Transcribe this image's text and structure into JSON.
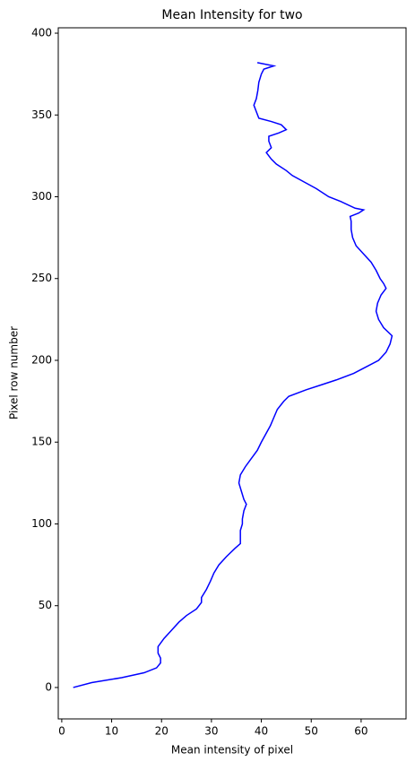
{
  "chart_data": {
    "type": "line",
    "title": "Mean Intensity for two",
    "x_label": "Mean intensity of pixel",
    "y_label": "Pixel row number",
    "color": "#0000ff",
    "x": [
      2.3,
      6,
      12,
      16.5,
      19,
      19.8,
      19.8,
      19.3,
      19.3,
      20.5,
      22,
      23.5,
      25,
      27,
      28,
      28,
      29,
      29.8,
      30.5,
      31.5,
      33,
      34.7,
      35.8,
      35.8,
      35.8,
      36.2,
      36.2,
      36.5,
      37,
      36.5,
      36,
      35.5,
      35.8,
      36.8,
      38,
      39.2,
      40,
      40.9,
      41.8,
      42.5,
      43.2,
      44.5,
      45.5,
      49,
      52,
      55,
      58.5,
      61,
      63.5,
      65,
      65.8,
      66.2,
      64.5,
      63.5,
      63,
      63.3,
      64,
      65,
      64.5,
      63.8,
      63,
      62,
      60.5,
      59,
      58.3,
      58,
      58,
      57.8,
      59.5,
      60.5,
      58.8,
      56,
      53.5,
      51,
      48,
      46.2,
      45,
      43,
      42,
      41,
      42,
      41.5,
      41.5,
      43.5,
      45,
      44,
      42,
      39.5,
      39,
      38.5,
      39,
      39.3,
      39.5,
      40,
      40.5,
      42.5,
      39.2
    ],
    "values": [
      0,
      3,
      6,
      9,
      12,
      15,
      18,
      21,
      25,
      30,
      35,
      40,
      44,
      48,
      52,
      55,
      60,
      65,
      70,
      75,
      80,
      85,
      88,
      92,
      96,
      100,
      103,
      108,
      112,
      115,
      120,
      125,
      130,
      135,
      140,
      145,
      150,
      155,
      160,
      165,
      170,
      175,
      178,
      182,
      185,
      188,
      192,
      196,
      200,
      205,
      210,
      215,
      220,
      225,
      230,
      235,
      240,
      244,
      247,
      250,
      255,
      260,
      265,
      270,
      275,
      280,
      285,
      288,
      290,
      292,
      293,
      297,
      300,
      305,
      310,
      313,
      316,
      320,
      323,
      327,
      330,
      334,
      337,
      339,
      341,
      344,
      346,
      348,
      352,
      356,
      360,
      365,
      370,
      375,
      378,
      380,
      382
    ],
    "xlim": [
      -0.7,
      69
    ],
    "xticks": [
      0,
      10,
      20,
      30,
      40,
      50,
      60
    ],
    "ylim": [
      -19.2,
      403.3
    ],
    "yticks": [
      0,
      50,
      100,
      150,
      200,
      250,
      300,
      350,
      400
    ]
  }
}
